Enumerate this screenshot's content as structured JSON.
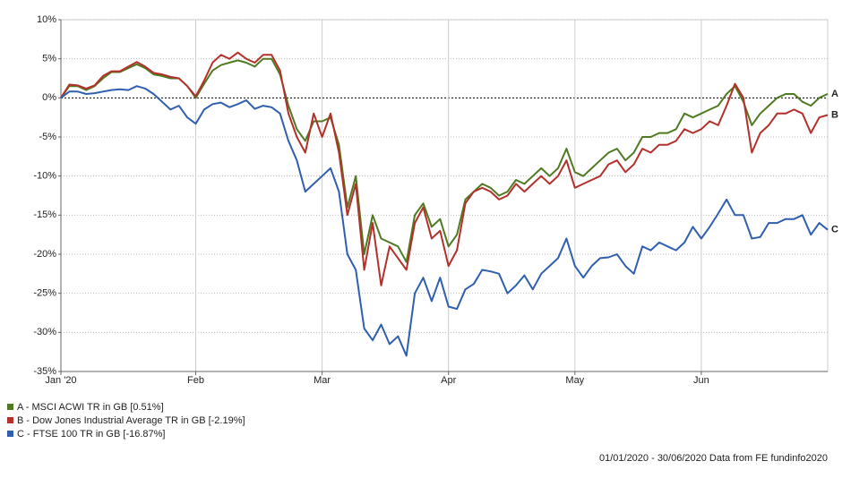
{
  "chart_data": {
    "type": "line",
    "categories": [
      "Jan '20",
      null,
      null,
      null,
      null,
      null,
      null,
      null,
      null,
      null,
      null,
      null,
      null,
      null,
      null,
      null,
      "Feb",
      null,
      null,
      null,
      null,
      null,
      null,
      null,
      null,
      null,
      null,
      null,
      null,
      null,
      null,
      "Mar",
      null,
      null,
      null,
      null,
      null,
      null,
      null,
      null,
      null,
      null,
      null,
      null,
      null,
      null,
      "Apr",
      null,
      null,
      null,
      null,
      null,
      null,
      null,
      null,
      null,
      null,
      null,
      null,
      null,
      null,
      "May",
      null,
      null,
      null,
      null,
      null,
      null,
      null,
      null,
      null,
      null,
      null,
      null,
      null,
      null,
      "Jun",
      null,
      null,
      null,
      null,
      null,
      null,
      null,
      null,
      null,
      null,
      null,
      null,
      null,
      null,
      null
    ],
    "series": [
      {
        "name": "A - MSCI ACWI TR in GB [0.51%]",
        "label": "A",
        "color": "#4f7a21",
        "values": [
          0,
          1.5,
          1.5,
          1,
          1.5,
          2.5,
          3.3,
          3.3,
          3.8,
          4.3,
          3.8,
          3,
          2.8,
          2.5,
          2.5,
          1.5,
          0,
          1.8,
          3.5,
          4.2,
          4.5,
          4.8,
          4.5,
          4,
          5,
          5,
          3,
          -1,
          -4,
          -5.5,
          -3,
          -3,
          -2.5,
          -6,
          -14,
          -10,
          -20,
          -15,
          -18,
          -18.5,
          -19,
          -21,
          -15,
          -13.5,
          -16.5,
          -15.5,
          -19,
          -17.5,
          -13,
          -12,
          -11,
          -11.5,
          -12.5,
          -12,
          -10.5,
          -11,
          -10,
          -9,
          -10,
          -9,
          -6.5,
          -9.5,
          -10,
          -9,
          -8,
          -7,
          -6.5,
          -8,
          -7,
          -5,
          -5,
          -4.5,
          -4.5,
          -4,
          -2,
          -2.5,
          -2,
          -1.5,
          -1,
          0.5,
          1.5,
          -0.5,
          -3.5,
          -2,
          -1,
          0,
          0.5,
          0.5,
          -0.5,
          -1,
          0,
          0.51
        ]
      },
      {
        "name": "B - Dow Jones Industrial Average TR in GB [-2.19%]",
        "label": "B",
        "color": "#b3302b",
        "values": [
          0,
          1.7,
          1.6,
          1.2,
          1.6,
          2.8,
          3.4,
          3.4,
          4,
          4.6,
          4,
          3.2,
          3,
          2.7,
          2.5,
          1.5,
          0.2,
          2.2,
          4.5,
          5.5,
          5,
          5.8,
          5,
          4.5,
          5.5,
          5.5,
          3.5,
          -2,
          -5,
          -7,
          -2,
          -5,
          -2,
          -7,
          -15,
          -11,
          -22,
          -16,
          -24,
          -19,
          -20.5,
          -22,
          -16,
          -14,
          -18,
          -17,
          -21.5,
          -19.5,
          -13.5,
          -12,
          -11.5,
          -12,
          -13,
          -12.5,
          -11,
          -12,
          -11,
          -10,
          -11,
          -10,
          -8,
          -11.5,
          -11,
          -10.5,
          -10,
          -8.5,
          -8,
          -9.5,
          -8.5,
          -6.5,
          -7,
          -6,
          -6,
          -5.5,
          -4,
          -4.5,
          -4,
          -3,
          -3.5,
          -1,
          1.8,
          0,
          -7,
          -4.5,
          -3.5,
          -2,
          -2,
          -1.5,
          -2,
          -4.5,
          -2.5,
          -2.19
        ]
      },
      {
        "name": "C - FTSE 100 TR in GB [-16.87%]",
        "label": "C",
        "color": "#2f5fae",
        "values": [
          0,
          0.8,
          0.8,
          0.5,
          0.6,
          0.8,
          1,
          1.1,
          1,
          1.5,
          1.2,
          0.5,
          -0.5,
          -1.5,
          -1,
          -2.5,
          -3.3,
          -1.5,
          -0.8,
          -0.6,
          -1.2,
          -0.8,
          -0.3,
          -1.4,
          -1,
          -1.2,
          -2,
          -5.5,
          -8,
          -12,
          -11,
          -10,
          -9,
          -12,
          -20,
          -22,
          -29.5,
          -31,
          -29,
          -31.5,
          -30.5,
          -33,
          -25,
          -23,
          -26,
          -23,
          -26.7,
          -27,
          -24.5,
          -23.8,
          -22,
          -22.2,
          -22.5,
          -25,
          -24,
          -22.7,
          -24.5,
          -22.5,
          -21.5,
          -20.5,
          -18,
          -21.5,
          -23,
          -21.5,
          -20.5,
          -20.4,
          -20,
          -21.5,
          -22.5,
          -19,
          -19.5,
          -18.5,
          -19,
          -19.5,
          -18.5,
          -16.5,
          -18,
          -16.5,
          -14.8,
          -13,
          -15,
          -15,
          -18,
          -17.8,
          -16,
          -16,
          -15.5,
          -15.5,
          -15,
          -17.5,
          -16,
          -16.87
        ]
      }
    ],
    "ylim": [
      -35,
      10
    ],
    "yticks": [
      {
        "value": 10,
        "label": "10%"
      },
      {
        "value": 5,
        "label": "5%"
      },
      {
        "value": 0,
        "label": "0%"
      },
      {
        "value": -5,
        "label": "-5%"
      },
      {
        "value": -10,
        "label": "-10%"
      },
      {
        "value": -15,
        "label": "-15%"
      },
      {
        "value": -20,
        "label": "-20%"
      },
      {
        "value": -25,
        "label": "-25%"
      },
      {
        "value": -30,
        "label": "-30%"
      },
      {
        "value": -35,
        "label": "-35%"
      }
    ],
    "grid": true,
    "footer": "01/01/2020 - 30/06/2020 Data from FE fundinfo2020"
  }
}
